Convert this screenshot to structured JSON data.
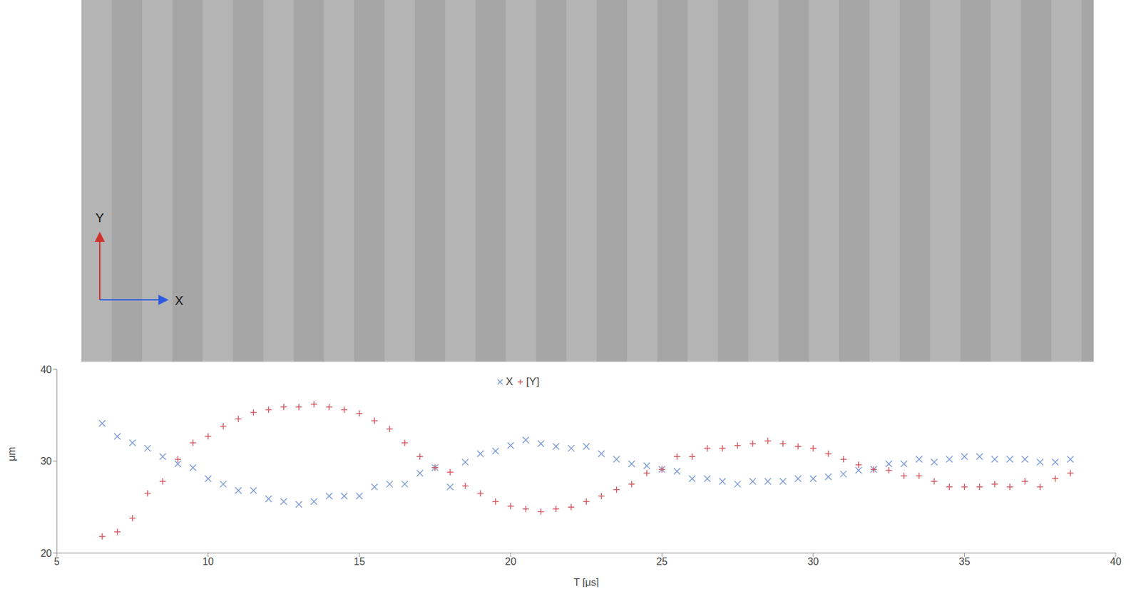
{
  "chart_data": {
    "type": "scatter",
    "xlabel": "T [μs]",
    "ylabel": "μm",
    "xlim": [
      5,
      40
    ],
    "ylim": [
      20,
      40
    ],
    "xticks": [
      5,
      10,
      15,
      20,
      25,
      30,
      35,
      40
    ],
    "yticks": [
      20,
      30,
      40
    ],
    "grid": false,
    "legend": "top",
    "x": [
      6.5,
      7,
      7.5,
      8,
      8.5,
      9,
      9.5,
      10,
      10.5,
      11,
      11.5,
      12,
      12.5,
      13,
      13.5,
      14,
      14.5,
      15,
      15.5,
      16,
      16.5,
      17,
      17.5,
      18,
      18.5,
      19,
      19.5,
      20,
      20.5,
      21,
      21.5,
      22,
      22.5,
      23,
      23.5,
      24,
      24.5,
      25,
      25.5,
      26,
      26.5,
      27,
      27.5,
      28,
      28.5,
      29,
      29.5,
      30,
      30.5,
      31,
      31.5,
      32,
      32.5,
      33,
      33.5,
      34,
      34.5,
      35,
      35.5,
      36,
      36.5,
      37,
      37.5,
      38,
      38.5
    ],
    "series": [
      {
        "name": "X",
        "color": "#7a9bd6",
        "marker": "x",
        "values": [
          34.1,
          32.7,
          32.0,
          31.4,
          30.5,
          29.7,
          29.3,
          28.1,
          27.5,
          26.8,
          26.8,
          25.9,
          25.6,
          25.3,
          25.6,
          26.2,
          26.2,
          26.2,
          27.2,
          27.5,
          27.5,
          28.7,
          29.3,
          27.2,
          29.9,
          30.8,
          31.1,
          31.7,
          32.3,
          31.9,
          31.6,
          31.4,
          31.6,
          30.8,
          30.2,
          29.7,
          29.5,
          29.1,
          28.9,
          28.1,
          28.1,
          27.8,
          27.5,
          27.8,
          27.8,
          27.8,
          28.1,
          28.1,
          28.3,
          28.6,
          29.0,
          29.1,
          29.7,
          29.7,
          30.2,
          29.9,
          30.2,
          30.5,
          30.5,
          30.2,
          30.2,
          30.2,
          29.9,
          29.9,
          30.2
        ]
      },
      {
        "name": "[Y]",
        "color": "#d2535c",
        "marker": "+",
        "values": [
          21.8,
          22.3,
          23.8,
          26.5,
          27.8,
          30.2,
          32.0,
          32.7,
          33.8,
          34.6,
          35.3,
          35.6,
          35.9,
          35.9,
          36.2,
          35.9,
          35.6,
          35.2,
          34.4,
          33.5,
          32.0,
          30.5,
          29.3,
          28.8,
          27.3,
          26.5,
          25.6,
          25.1,
          24.8,
          24.5,
          24.8,
          25.0,
          25.6,
          26.2,
          26.9,
          27.5,
          28.7,
          29.1,
          30.5,
          30.5,
          31.4,
          31.4,
          31.7,
          31.9,
          32.2,
          31.9,
          31.6,
          31.4,
          30.8,
          30.2,
          29.6,
          29.1,
          29.0,
          28.4,
          28.4,
          27.8,
          27.2,
          27.2,
          27.2,
          27.5,
          27.2,
          27.8,
          27.2,
          28.1,
          28.7
        ]
      }
    ]
  },
  "photo_strip": {
    "axis_labels": {
      "vertical": "Y",
      "horizontal": "X"
    }
  }
}
